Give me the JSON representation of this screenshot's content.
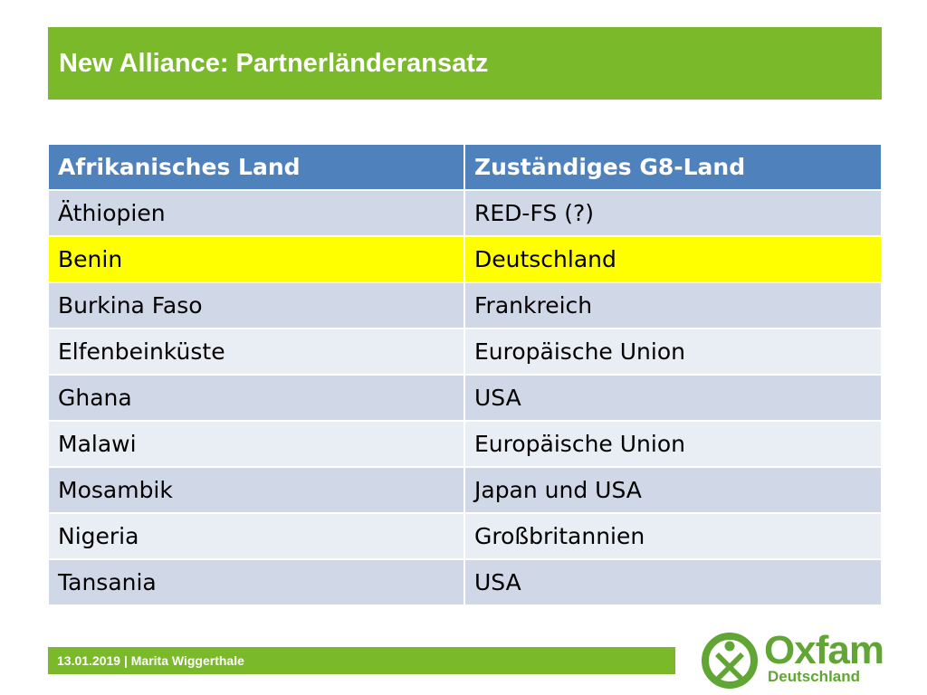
{
  "slide": {
    "title": "New Alliance: Partnerländeransatz",
    "highlight_color": "#ffff00",
    "accent_color": "#7ab929"
  },
  "table": {
    "headers": [
      "Afrikanisches Land",
      "Zuständiges G8-Land"
    ],
    "rows": [
      [
        "Äthiopien",
        "RED-FS (?)"
      ],
      [
        "Benin",
        "Deutschland"
      ],
      [
        "Burkina Faso",
        "Frankreich"
      ],
      [
        "Elfenbeinküste",
        "Europäische Union"
      ],
      [
        "Ghana",
        "USA"
      ],
      [
        "Malawi",
        "Europäische Union"
      ],
      [
        "Mosambik",
        "Japan und USA"
      ],
      [
        "Nigeria",
        "Großbritannien"
      ],
      [
        "Tansania",
        "USA"
      ]
    ],
    "highlighted_row": "Benin"
  },
  "footer": {
    "text": "13.01.2019 | Marita Wiggerthale"
  },
  "logo": {
    "icon": "oxfam-logo-icon",
    "brand": "Oxfam",
    "subtitle": "Deutschland"
  }
}
